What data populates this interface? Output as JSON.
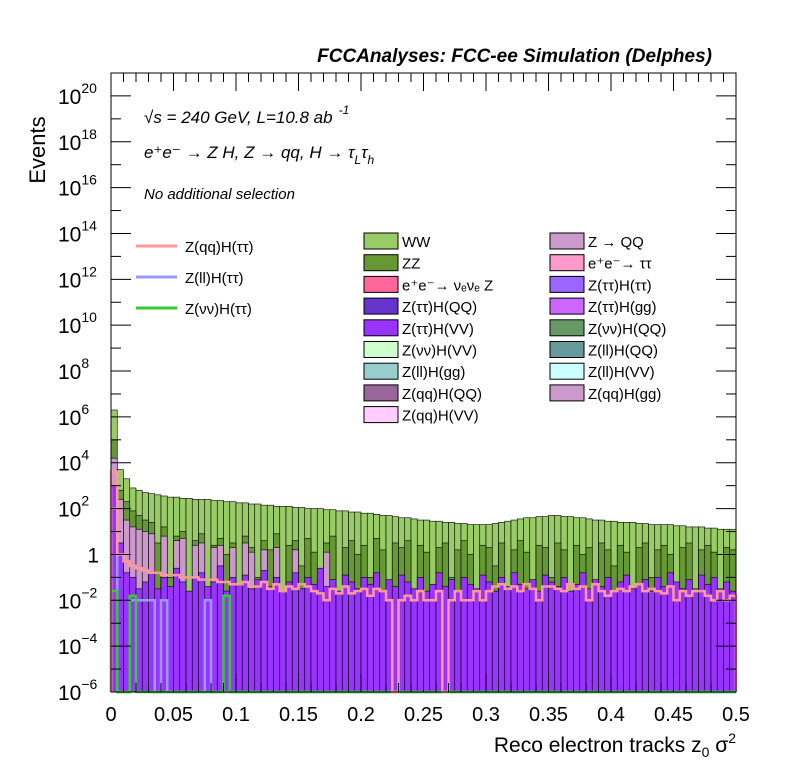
{
  "chart_data": {
    "type": "bar",
    "title": "FCCAnalyses: FCC-ee Simulation (Delphes)",
    "xlabel": "Reco electron tracks z",
    "xlabel_sub": "0",
    "xlabel_tail": " σ",
    "xlabel_sup": "2",
    "ylabel": "Events",
    "xlim": [
      0,
      0.5
    ],
    "ylim": [
      1e-06,
      1e+21
    ],
    "log_y": true,
    "bin_width": 0.005,
    "x_ticks": [
      "0",
      "0.05",
      "0.1",
      "0.15",
      "0.2",
      "0.25",
      "0.3",
      "0.35",
      "0.4",
      "0.45",
      "0.5"
    ],
    "y_ticks": [
      {
        "base": "10",
        "exp": "−6",
        "value": 1e-06
      },
      {
        "base": "10",
        "exp": "−4",
        "value": 0.0001
      },
      {
        "base": "10",
        "exp": "−2",
        "value": 0.01
      },
      {
        "base": "1",
        "exp": "",
        "value": 1
      },
      {
        "base": "10",
        "exp": "2",
        "value": 100.0
      },
      {
        "base": "10",
        "exp": "4",
        "value": 10000.0
      },
      {
        "base": "10",
        "exp": "6",
        "value": 1000000.0
      },
      {
        "base": "10",
        "exp": "8",
        "value": 100000000.0
      },
      {
        "base": "10",
        "exp": "10",
        "value": 10000000000.0
      },
      {
        "base": "10",
        "exp": "12",
        "value": 1000000000000.0
      },
      {
        "base": "10",
        "exp": "14",
        "value": 100000000000000.0
      },
      {
        "base": "10",
        "exp": "16",
        "value": 1e+16
      },
      {
        "base": "10",
        "exp": "18",
        "value": 1e+18
      },
      {
        "base": "10",
        "exp": "20",
        "value": 1e+20
      }
    ],
    "annotations": {
      "energy": "√s = 240 GeV, L=10.8 ab",
      "energy_sup": "-1",
      "process": "e⁺e⁻ → Z H, Z → qq, H → τ",
      "process_sub1": "L",
      "process_tau": "τ",
      "process_sub2": "h",
      "selection": "No additional selection"
    },
    "signal_legend": [
      {
        "name": "Z(qq)H(ττ)",
        "color": "#ff9999"
      },
      {
        "name": "Z(ll)H(ττ)",
        "color": "#9999ff"
      },
      {
        "name": "Z(νν)H(ττ)",
        "color": "#33cc33"
      }
    ],
    "background_legend": [
      {
        "name": "WW",
        "color": "#99cc66"
      },
      {
        "name": "Z → QQ",
        "color": "#cc99cc"
      },
      {
        "name": "ZZ",
        "color": "#669933"
      },
      {
        "name": "e⁺e⁻→ ττ",
        "color": "#ff99cc"
      },
      {
        "name": "e⁺e⁻→ νₑνₑ Z",
        "color": "#ff6699"
      },
      {
        "name": "Z(ττ)H(ττ)",
        "color": "#9966ff"
      },
      {
        "name": "Z(ττ)H(QQ)",
        "color": "#6633cc"
      },
      {
        "name": "Z(ττ)H(gg)",
        "color": "#cc66ff"
      },
      {
        "name": "Z(ττ)H(VV)",
        "color": "#9933ff"
      },
      {
        "name": "Z(νν)H(QQ)",
        "color": "#669966"
      },
      {
        "name": "Z(νν)H(VV)",
        "color": "#ccffcc"
      },
      {
        "name": "Z(ll)H(QQ)",
        "color": "#669999"
      },
      {
        "name": "Z(ll)H(gg)",
        "color": "#99cccc"
      },
      {
        "name": "Z(ll)H(VV)",
        "color": "#ccffff"
      },
      {
        "name": "Z(qq)H(QQ)",
        "color": "#996699"
      },
      {
        "name": "Z(qq)H(gg)",
        "color": "#cc99cc"
      },
      {
        "name": "Z(qq)H(VV)",
        "color": "#ffccff"
      }
    ],
    "stack_total_log10": [
      6.3,
      3.7,
      3.3,
      2.9,
      2.8,
      2.7,
      2.65,
      2.6,
      2.55,
      2.5,
      2.5,
      2.45,
      2.45,
      2.4,
      2.4,
      2.4,
      2.35,
      2.35,
      2.3,
      2.3,
      2.25,
      2.25,
      2.2,
      2.2,
      2.15,
      2.15,
      2.1,
      2.1,
      2.1,
      2.05,
      2.05,
      2.0,
      2.0,
      2.0,
      1.95,
      1.95,
      1.9,
      1.9,
      1.85,
      1.85,
      1.8,
      1.8,
      1.75,
      1.7,
      1.7,
      1.65,
      1.6,
      1.6,
      1.55,
      1.5,
      1.5,
      1.45,
      1.45,
      1.4,
      1.4,
      1.35,
      1.35,
      1.3,
      1.3,
      1.3,
      1.3,
      1.35,
      1.4,
      1.45,
      1.5,
      1.55,
      1.6,
      1.6,
      1.65,
      1.65,
      1.7,
      1.7,
      1.65,
      1.65,
      1.6,
      1.6,
      1.55,
      1.5,
      1.5,
      1.45,
      1.45,
      1.4,
      1.4,
      1.4,
      1.35,
      1.35,
      1.3,
      1.3,
      1.3,
      1.3,
      1.25,
      1.25,
      1.2,
      1.2,
      1.2,
      1.15,
      1.15,
      1.1,
      1.1,
      1.1
    ],
    "zz_top_log10": [
      5.0,
      2.8,
      2.3,
      1.9,
      1.7,
      1.5,
      1.4,
      0.5,
      1.2,
      -1.0,
      0.8,
      1.0,
      -2.0,
      0.6,
      0.9,
      -1.5,
      0.4,
      0.7,
      0.0,
      0.5,
      -2.5,
      0.8,
      0.3,
      -1.0,
      0.6,
      0.2,
      0.9,
      -2.0,
      0.4,
      0.6,
      -0.5,
      0.7,
      0.1,
      -1.5,
      0.5,
      0.8,
      -2.5,
      0.3,
      0.6,
      0.0,
      0.4,
      -1.0,
      0.7,
      0.2,
      -2.0,
      0.5,
      0.3,
      0.6,
      -1.5,
      0.4,
      0.1,
      -2.5,
      0.3,
      0.5,
      -1.0,
      0.2,
      0.6,
      0.0,
      -2.0,
      0.4,
      0.3,
      -0.5,
      0.5,
      -1.5,
      0.2,
      0.6,
      0.1,
      -2.5,
      0.4,
      0.3,
      -1.0,
      0.5,
      0.2,
      -2.0,
      0.4,
      0.0,
      0.3,
      -1.5,
      0.5,
      0.2,
      -0.5,
      0.4,
      0.1,
      -2.5,
      0.3,
      0.5,
      -1.0,
      0.2,
      0.4,
      0.0,
      -2.0,
      0.3,
      0.5,
      -1.5,
      0.2,
      0.4,
      0.1,
      -2.5,
      0.3,
      0.2
    ],
    "zqq_top_log10": [
      4.2,
      2.4,
      1.5,
      1.2,
      1.1,
      1.0,
      0.9,
      -6,
      0.8,
      -6,
      0.6,
      0.7,
      -6,
      0.4,
      0.5,
      -6,
      0.3,
      0.4,
      -6,
      0.3,
      -6,
      0.5,
      0.1,
      -6,
      0.2,
      -6,
      0.3,
      -6,
      -6,
      0.2,
      -6,
      -6,
      -6,
      -6,
      0.1,
      -6,
      -6,
      -6,
      -6,
      -6,
      -6,
      -6,
      -6,
      -6,
      -6,
      -6,
      -6,
      -6,
      -6,
      -6,
      -6,
      -6,
      -6,
      -6,
      -6,
      -6,
      -6,
      -6,
      -6,
      -6,
      -6,
      -6,
      -6,
      -6,
      -6,
      -6,
      -6,
      -6,
      -6,
      -6,
      -6,
      -6,
      -6,
      -6,
      -6,
      -6,
      -6,
      -6,
      -6,
      -6,
      -6,
      -6,
      -6,
      -6,
      -6,
      -6,
      -6,
      -6,
      -6,
      -6,
      -6,
      -6,
      -6,
      -6,
      -6,
      -6,
      -6,
      -6,
      -6,
      -6
    ],
    "purple_top_log10": [
      3.0,
      0.5,
      -0.8,
      -1.0,
      -1.5,
      -1.2,
      -0.8,
      -1.5,
      -1.0,
      -1.4,
      -0.6,
      -1.2,
      -1.6,
      -1.0,
      -0.8,
      -1.4,
      -1.2,
      -0.5,
      -1.6,
      -1.0,
      -1.3,
      -0.9,
      -1.5,
      -1.1,
      -0.7,
      -1.4,
      -1.0,
      -1.6,
      -1.2,
      -0.8,
      -1.5,
      -1.0,
      -1.3,
      -0.6,
      -1.4,
      -1.1,
      -1.6,
      -0.9,
      -1.2,
      -1.5,
      -1.0,
      -1.3,
      -0.8,
      -1.6,
      -1.1,
      -1.4,
      -0.9,
      -1.2,
      -1.5,
      -1.0,
      -1.6,
      -1.3,
      -0.8,
      -1.4,
      -1.1,
      -1.6,
      -1.0,
      -1.3,
      -1.5,
      -0.9,
      -1.2,
      -1.6,
      -1.0,
      -1.4,
      -0.8,
      -1.3,
      -1.5,
      -1.1,
      -1.6,
      -0.9,
      -1.2,
      -1.4,
      -1.0,
      -1.6,
      -1.3,
      -0.8,
      -1.5,
      -1.1,
      -1.4,
      -1.0,
      -1.6,
      -1.2,
      -0.9,
      -1.5,
      -1.3,
      -1.1,
      -1.6,
      -1.0,
      -1.4,
      -0.8,
      -1.2,
      -1.5,
      -1.1,
      -1.6,
      -0.9,
      -1.3,
      -1.0,
      -1.5,
      -1.2,
      -1.6
    ],
    "signal_qq_log10": [
      3.6,
      0.0,
      -0.3,
      -0.5,
      -0.6,
      -0.7,
      -0.8,
      -0.8,
      -0.9,
      -0.9,
      -0.9,
      -1.0,
      -1.0,
      -1.0,
      -1.1,
      -1.1,
      -1.1,
      -1.2,
      -1.2,
      -1.3,
      -1.3,
      -1.2,
      -1.4,
      -1.4,
      -1.2,
      -1.5,
      -1.3,
      -1.6,
      -1.4,
      -1.5,
      -1.3,
      -1.4,
      -1.6,
      -1.7,
      -2.0,
      -1.5,
      -1.7,
      -1.4,
      -1.7,
      -1.6,
      -1.5,
      -1.8,
      -1.5,
      -1.6,
      -2.0,
      -6,
      -2.0,
      -1.8,
      -2.0,
      -1.6,
      -2.0,
      -2.0,
      -1.6,
      -6,
      -2.0,
      -1.6,
      -2.0,
      -2.0,
      -1.6,
      -2.0,
      -1.6,
      -1.4,
      -1.3,
      -1.5,
      -1.4,
      -1.6,
      -1.3,
      -1.5,
      -2.0,
      -1.4,
      -1.4,
      -1.5,
      -1.6,
      -1.3,
      -1.5,
      -1.4,
      -2.0,
      -1.3,
      -1.6,
      -1.8,
      -1.6,
      -1.5,
      -1.6,
      -1.4,
      -1.3,
      -1.6,
      -1.5,
      -1.6,
      -1.7,
      -1.4,
      -2.0,
      -1.6,
      -1.8,
      -1.6,
      -1.6,
      -1.8,
      -2.0,
      -1.6,
      -2.0,
      -1.8
    ],
    "signal_ll_log10": [
      2.0,
      -6,
      -6,
      -2.0,
      -2.0,
      -2.0,
      -2.0,
      -6,
      -2.0,
      -6,
      -6,
      -6,
      -6,
      -6,
      -6,
      -2.0,
      -6,
      -6,
      -6,
      -6,
      -6,
      -6,
      -6,
      -6,
      -6,
      -6,
      -6,
      -6,
      -6,
      -6,
      -6,
      -6,
      -6,
      -6,
      -6,
      -6,
      -6,
      -6,
      -6,
      -6,
      -6,
      -6,
      -6,
      -6,
      -6,
      -6,
      -6,
      -6,
      -6,
      -6,
      -6,
      -6,
      -6,
      -6,
      -6,
      -6,
      -6,
      -6,
      -6,
      -6,
      -6,
      -6,
      -6,
      -6,
      -6,
      -6,
      -6,
      -6,
      -6,
      -6,
      -6,
      -6,
      -6,
      -6,
      -6,
      -6,
      -6,
      -6,
      -6,
      -6,
      -6,
      -6,
      -6,
      -6,
      -6,
      -6,
      -6,
      -6,
      -6,
      -6,
      -6,
      -6,
      -6,
      -6,
      -6,
      -6,
      -6,
      -6,
      -6,
      -6
    ],
    "signal_vv_log10": [
      -1.6,
      -6,
      -6,
      -1.8,
      -6,
      -6,
      -6,
      -6,
      -6,
      -6,
      -6,
      -6,
      -6,
      -6,
      -6,
      -6,
      -6,
      -6,
      -1.8,
      -6,
      -6,
      -6,
      -6,
      -6,
      -6,
      -6,
      -6,
      -6,
      -6,
      -6,
      -6,
      -6,
      -6,
      -6,
      -6,
      -6,
      -6,
      -6,
      -6,
      -6,
      -6,
      -6,
      -6,
      -6,
      -6,
      -6,
      -6,
      -6,
      -6,
      -6,
      -6,
      -6,
      -6,
      -6,
      -6,
      -6,
      -6,
      -6,
      -6,
      -6,
      -6,
      -6,
      -6,
      -6,
      -6,
      -6,
      -6,
      -6,
      -6,
      -6,
      -6,
      -6,
      -6,
      -6,
      -6,
      -6,
      -6,
      -6,
      -6,
      -6,
      -6,
      -6,
      -6,
      -6,
      -6,
      -6,
      -6,
      -6,
      -6,
      -6,
      -6,
      -6,
      -6,
      -6,
      -6,
      -6,
      -6,
      -6,
      -6,
      -6
    ]
  }
}
